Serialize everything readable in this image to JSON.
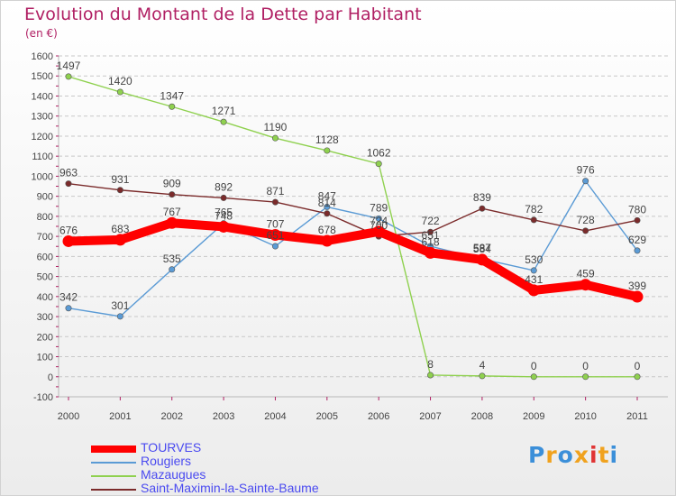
{
  "header": {
    "title": "Evolution du Montant de la Dette par Habitant",
    "subtitle": "(en €)"
  },
  "logo": {
    "text": "Proxiti",
    "colors": [
      "#3b8fd9",
      "#f0a21e",
      "#3b8fd9",
      "#f0a21e",
      "#e03434",
      "#f0a21e",
      "#3b8fd9"
    ]
  },
  "chart_data": {
    "type": "line",
    "title": "Evolution du Montant de la Dette par Habitant",
    "ylabel": "(en €)",
    "xlabel": "",
    "ylim": [
      -100,
      1600
    ],
    "yticks": [
      -100,
      0,
      100,
      200,
      300,
      400,
      500,
      600,
      700,
      800,
      900,
      1000,
      1100,
      1200,
      1300,
      1400,
      1500,
      1600
    ],
    "x": [
      "2000",
      "2001",
      "2002",
      "2003",
      "2004",
      "2005",
      "2006",
      "2007",
      "2008",
      "2009",
      "2010",
      "2011"
    ],
    "grid": "horizontal dashed",
    "legend_position": "bottom-left",
    "series": [
      {
        "name": "TOURVES",
        "color": "#ff0000",
        "values": [
          676,
          683,
          767,
          748,
          707,
          678,
          724,
          618,
          584,
          431,
          459,
          399
        ]
      },
      {
        "name": "Rougiers",
        "color": "#5b9bd5",
        "values": [
          342,
          301,
          535,
          765,
          651,
          847,
          789,
          651,
          587,
          530,
          976,
          629
        ]
      },
      {
        "name": "Mazaugues",
        "color": "#8fd14f",
        "values": [
          1497,
          1420,
          1347,
          1271,
          1190,
          1128,
          1062,
          8,
          4,
          0,
          0,
          0
        ]
      },
      {
        "name": "Saint-Maximin-la-Sainte-Baume",
        "color": "#7b2b2b",
        "values": [
          963,
          931,
          909,
          892,
          871,
          814,
          700,
          722,
          839,
          782,
          728,
          780
        ]
      }
    ]
  }
}
